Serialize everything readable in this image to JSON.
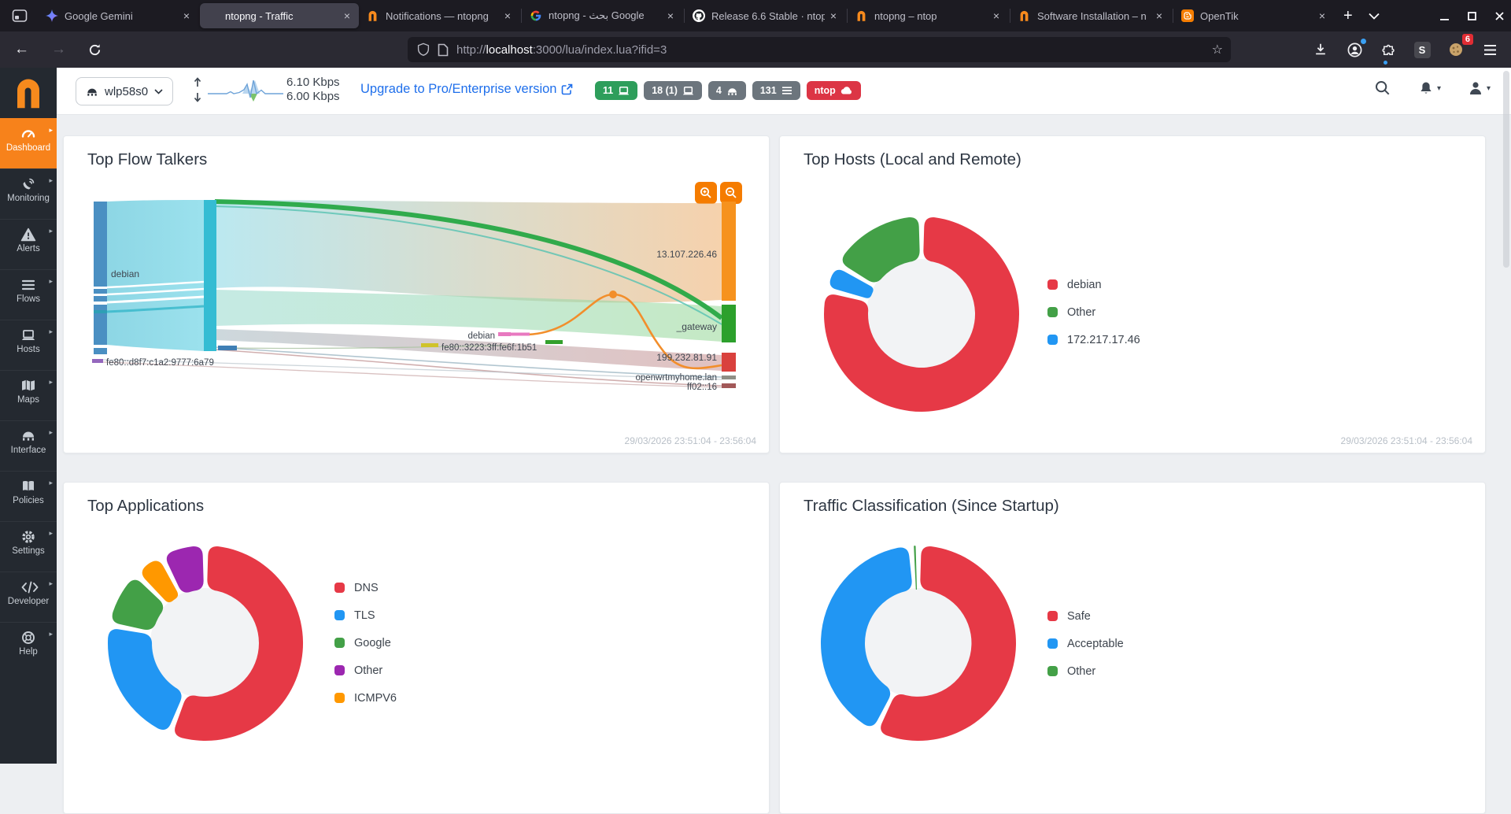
{
  "browser": {
    "tabs": [
      {
        "title": "Google Gemini",
        "favicon": "gemini-icon",
        "active": false
      },
      {
        "title": "ntopng - Traffic",
        "favicon": "none",
        "active": true
      },
      {
        "title": "Notifications — ntopng",
        "favicon": "ntop-icon",
        "active": false
      },
      {
        "title": "ntopng - بحث Google",
        "favicon": "google-icon",
        "active": false
      },
      {
        "title": "Release 6.6 Stable · ntop",
        "favicon": "github-icon",
        "active": false
      },
      {
        "title": "ntopng – ntop",
        "favicon": "ntop-icon",
        "active": false
      },
      {
        "title": "Software Installation – n",
        "favicon": "ntop-icon",
        "active": false
      },
      {
        "title": "OpenTik",
        "favicon": "blogger-icon",
        "active": false
      }
    ],
    "url_prefix": "http://",
    "url_host": "localhost",
    "url_rest": ":3000/lua/index.lua?ifid=3",
    "extension_letter": "S",
    "cookie_badge": "6",
    "toolbar_icon_names": [
      "back-arrow-icon",
      "forward-arrow-icon",
      "reload-icon",
      "shield-icon",
      "page-icon",
      "bookmark-star-icon",
      "download-icon",
      "account-icon",
      "extensions-icon",
      "cookie-icon",
      "menu-icon"
    ]
  },
  "sidebar": {
    "items": [
      {
        "label": "Dashboard",
        "icon": "gauge-icon",
        "active": true
      },
      {
        "label": "Monitoring",
        "icon": "antenna-icon",
        "active": false
      },
      {
        "label": "Alerts",
        "icon": "warning-icon",
        "active": false
      },
      {
        "label": "Flows",
        "icon": "list-icon",
        "active": false
      },
      {
        "label": "Hosts",
        "icon": "laptop-icon",
        "active": false
      },
      {
        "label": "Maps",
        "icon": "map-icon",
        "active": false
      },
      {
        "label": "Interface",
        "icon": "hub-icon",
        "active": false
      },
      {
        "label": "Policies",
        "icon": "book-icon",
        "active": false
      },
      {
        "label": "Settings",
        "icon": "gear-icon",
        "active": false
      },
      {
        "label": "Developer",
        "icon": "code-icon",
        "active": false
      },
      {
        "label": "Help",
        "icon": "lifering-icon",
        "active": false
      }
    ]
  },
  "header": {
    "interface_name": "wlp58s0",
    "rate_up": "6.10 Kbps",
    "rate_down": "6.00 Kbps",
    "upgrade_label": "Upgrade to Pro/Enterprise version",
    "badges": [
      {
        "text": "11",
        "icon": "laptop-icon",
        "color": "#2e9e5b"
      },
      {
        "text": "18 (1)",
        "icon": "laptop-icon",
        "color": "#6c757d"
      },
      {
        "text": "4",
        "icon": "hub-icon",
        "color": "#6c757d"
      },
      {
        "text": "131",
        "icon": "list-icon",
        "color": "#6c757d"
      },
      {
        "text": "ntop",
        "icon": "cloud-icon",
        "color": "#dc3545"
      }
    ]
  },
  "cards": {
    "flow_talkers": {
      "title": "Top Flow Talkers",
      "timestamp": "29/03/2026 23:51:04 - 23:56:04"
    },
    "top_hosts": {
      "title": "Top Hosts (Local and Remote)",
      "timestamp": "29/03/2026 23:51:04 - 23:56:04"
    },
    "top_apps": {
      "title": "Top Applications"
    },
    "classification": {
      "title": "Traffic Classification (Since Startup)"
    }
  },
  "colors": {
    "accent_orange": "#f7821b",
    "donut_red": "#e63946",
    "donut_blue": "#2196f3",
    "donut_green": "#43a047",
    "donut_purple": "#9c27b0",
    "donut_orange": "#ff9800",
    "link_blue": "#1f6feb"
  },
  "chart_data": [
    {
      "type": "sankey",
      "title": "Top Flow Talkers",
      "nodes": [
        {
          "label": "debian"
        },
        {
          "label": "fe80::d8f7:c1a2:9777:6a79"
        },
        {
          "label": "fe80::3223:3ff:fe6f:1b51"
        },
        {
          "label": "debian"
        },
        {
          "label": "13.107.226.46"
        },
        {
          "label": "_gateway"
        },
        {
          "label": "199.232.81.91"
        },
        {
          "label": "openwrtmyhome.lan"
        },
        {
          "label": "ff02::16"
        }
      ],
      "links": [
        {
          "source": "debian",
          "target": "13.107.226.46"
        },
        {
          "source": "debian",
          "target": "_gateway"
        },
        {
          "source": "debian",
          "target": "199.232.81.91"
        },
        {
          "source": "debian",
          "target": "openwrtmyhome.lan"
        },
        {
          "source": "debian",
          "target": "ff02::16"
        },
        {
          "source": "fe80::d8f7:c1a2:9777:6a79",
          "target": "ff02::16"
        },
        {
          "source": "fe80::3223:3ff:fe6f:1b51",
          "target": "openwrtmyhome.lan"
        },
        {
          "source": "debian",
          "target": "199.232.81.91"
        }
      ]
    },
    {
      "type": "pie",
      "title": "Top Hosts (Local and Remote)",
      "slices": [
        {
          "label": "debian",
          "value": 79,
          "color": "#e63946"
        },
        {
          "label": "172.217.17.46",
          "value": 4.5,
          "color": "#2196f3"
        },
        {
          "label": "Other",
          "value": 16.5,
          "color": "#43a047"
        }
      ],
      "legend": [
        {
          "label": "debian",
          "color": "#e63946"
        },
        {
          "label": "Other",
          "color": "#43a047"
        },
        {
          "label": "172.217.17.46",
          "color": "#2196f3"
        }
      ]
    },
    {
      "type": "pie",
      "title": "Top Applications",
      "slices": [
        {
          "label": "DNS",
          "value": 56,
          "color": "#e63946"
        },
        {
          "label": "TLS",
          "value": 22,
          "color": "#2196f3"
        },
        {
          "label": "Google",
          "value": 9.5,
          "color": "#43a047"
        },
        {
          "label": "ICMPV6",
          "value": 5,
          "color": "#ff9800"
        },
        {
          "label": "Other",
          "value": 7.5,
          "color": "#9c27b0"
        }
      ],
      "legend": [
        {
          "label": "DNS",
          "color": "#e63946"
        },
        {
          "label": "TLS",
          "color": "#2196f3"
        },
        {
          "label": "Google",
          "color": "#43a047"
        },
        {
          "label": "Other",
          "color": "#9c27b0"
        },
        {
          "label": "ICMPV6",
          "color": "#ff9800"
        }
      ]
    },
    {
      "type": "pie",
      "title": "Traffic Classification (Since Startup)",
      "slices": [
        {
          "label": "Safe",
          "value": 57.3,
          "color": "#e63946"
        },
        {
          "label": "Acceptable",
          "value": 41.5,
          "color": "#2196f3"
        },
        {
          "label": "Other",
          "value": 1.2,
          "color": "#43a047"
        }
      ],
      "legend": [
        {
          "label": "Safe",
          "color": "#e63946"
        },
        {
          "label": "Acceptable",
          "color": "#2196f3"
        },
        {
          "label": "Other",
          "color": "#43a047"
        }
      ]
    }
  ]
}
